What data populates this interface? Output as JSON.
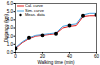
{
  "chart_data": {
    "type": "line",
    "x_label": "Walking time (min)",
    "y_label": "Distance (km)",
    "x": [
      0,
      5,
      10,
      15,
      20,
      25,
      30,
      35,
      40,
      45,
      50,
      55,
      60
    ],
    "series": [
      {
        "name": "Cal. curve",
        "color": "#e41a1c",
        "line_style": "solid",
        "values": [
          0.5,
          1.2,
          1.7,
          2.0,
          2.1,
          2.2,
          2.3,
          3.0,
          3.2,
          3.3,
          4.4,
          4.5,
          4.5
        ]
      },
      {
        "name": "Sim. curve",
        "color": "#4aa3df",
        "line_style": "solid",
        "values": [
          0.6,
          1.3,
          1.8,
          2.1,
          2.2,
          2.3,
          2.4,
          3.2,
          3.4,
          3.5,
          4.6,
          4.8,
          4.8
        ]
      },
      {
        "name": "Meas. data",
        "color": "#000000",
        "line_style": "none",
        "marker": "circle",
        "values": [
          0.5,
          null,
          1.8,
          null,
          2.1,
          null,
          2.3,
          null,
          3.3,
          null,
          4.5,
          null,
          4.6
        ]
      }
    ],
    "xlim": [
      0,
      60
    ],
    "xticks": [
      0,
      20,
      40,
      60
    ],
    "ylim": [
      0,
      6
    ],
    "yticks": [
      0,
      1,
      2,
      3,
      4,
      5,
      6
    ],
    "grid": false,
    "legend": "top-left"
  }
}
